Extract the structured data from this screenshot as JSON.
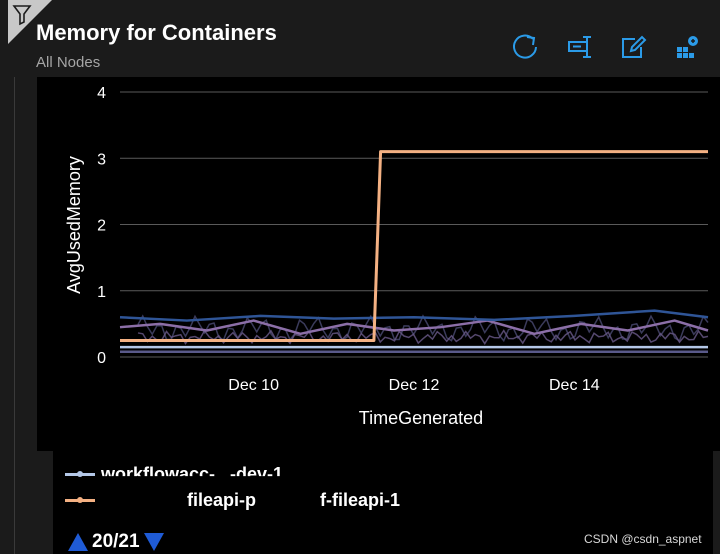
{
  "header": {
    "title": "Memory for Containers",
    "subtitle": "All Nodes"
  },
  "toolbar": {
    "accent": "#2b9be8",
    "buttons": [
      {
        "icon": "refresh-icon"
      },
      {
        "icon": "query-icon"
      },
      {
        "icon": "edit-icon"
      },
      {
        "icon": "pin-icon"
      }
    ]
  },
  "legend": {
    "items": [
      {
        "label_visible": "workflowacc-...-dev-1",
        "color": "#b4c7e7"
      },
      {
        "label_left": "fileapi-p",
        "label_right": "f-fileapi-1",
        "color": "#f4b183"
      }
    ],
    "pager": "20/21"
  },
  "watermark": "CSDN @csdn_aspnet",
  "chart_data": {
    "type": "line",
    "title": "",
    "xlabel": "TimeGenerated",
    "ylabel": "AvgUsedMemory",
    "ylim": [
      0,
      4
    ],
    "y_ticks": [
      "0",
      "1",
      "2",
      "3",
      "4"
    ],
    "x_ticks": [
      "Dec 10",
      "Dec 12",
      "Dec 14"
    ],
    "xlim": [
      "2023-12-08T08:00",
      "2023-12-15T16:00"
    ],
    "grid": true,
    "series": [
      {
        "name": "f-fileapi-1",
        "color": "#f4b183",
        "x": [
          "2023-12-08T08:00",
          "2023-12-11T12:00",
          "2023-12-11T14:00",
          "2023-12-15T16:00"
        ],
        "y": [
          0.25,
          0.25,
          3.1,
          3.1
        ]
      },
      {
        "color": "#b4c7e7",
        "x": [
          "2023-12-08T08:00",
          "2023-12-15T16:00"
        ],
        "y": [
          0.15,
          0.15
        ]
      },
      {
        "color": "#8c6fa8",
        "x": [
          "2023-12-08T08:00",
          "2023-12-08T20:00",
          "2023-12-09T10:00",
          "2023-12-10T00:00",
          "2023-12-10T14:00",
          "2023-12-11T04:00",
          "2023-12-11T18:00",
          "2023-12-12T08:00",
          "2023-12-12T22:00",
          "2023-12-13T12:00",
          "2023-12-14T02:00",
          "2023-12-14T16:00",
          "2023-12-15T06:00",
          "2023-12-15T16:00"
        ],
        "y": [
          0.45,
          0.5,
          0.4,
          0.55,
          0.35,
          0.5,
          0.4,
          0.45,
          0.55,
          0.35,
          0.5,
          0.4,
          0.55,
          0.4
        ]
      },
      {
        "color": "#2f5597",
        "x": [
          "2023-12-08T08:00",
          "2023-12-09T04:00",
          "2023-12-10T02:00",
          "2023-12-11T00:00",
          "2023-12-12T00:00",
          "2023-12-13T00:00",
          "2023-12-14T00:00",
          "2023-12-15T00:00",
          "2023-12-15T16:00"
        ],
        "y": [
          0.6,
          0.55,
          0.62,
          0.58,
          0.6,
          0.56,
          0.62,
          0.7,
          0.6
        ]
      },
      {
        "color": "#5a5a8a",
        "x": [
          "2023-12-08T08:00",
          "2023-12-15T16:00"
        ],
        "y": [
          0.08,
          0.08
        ]
      }
    ]
  }
}
